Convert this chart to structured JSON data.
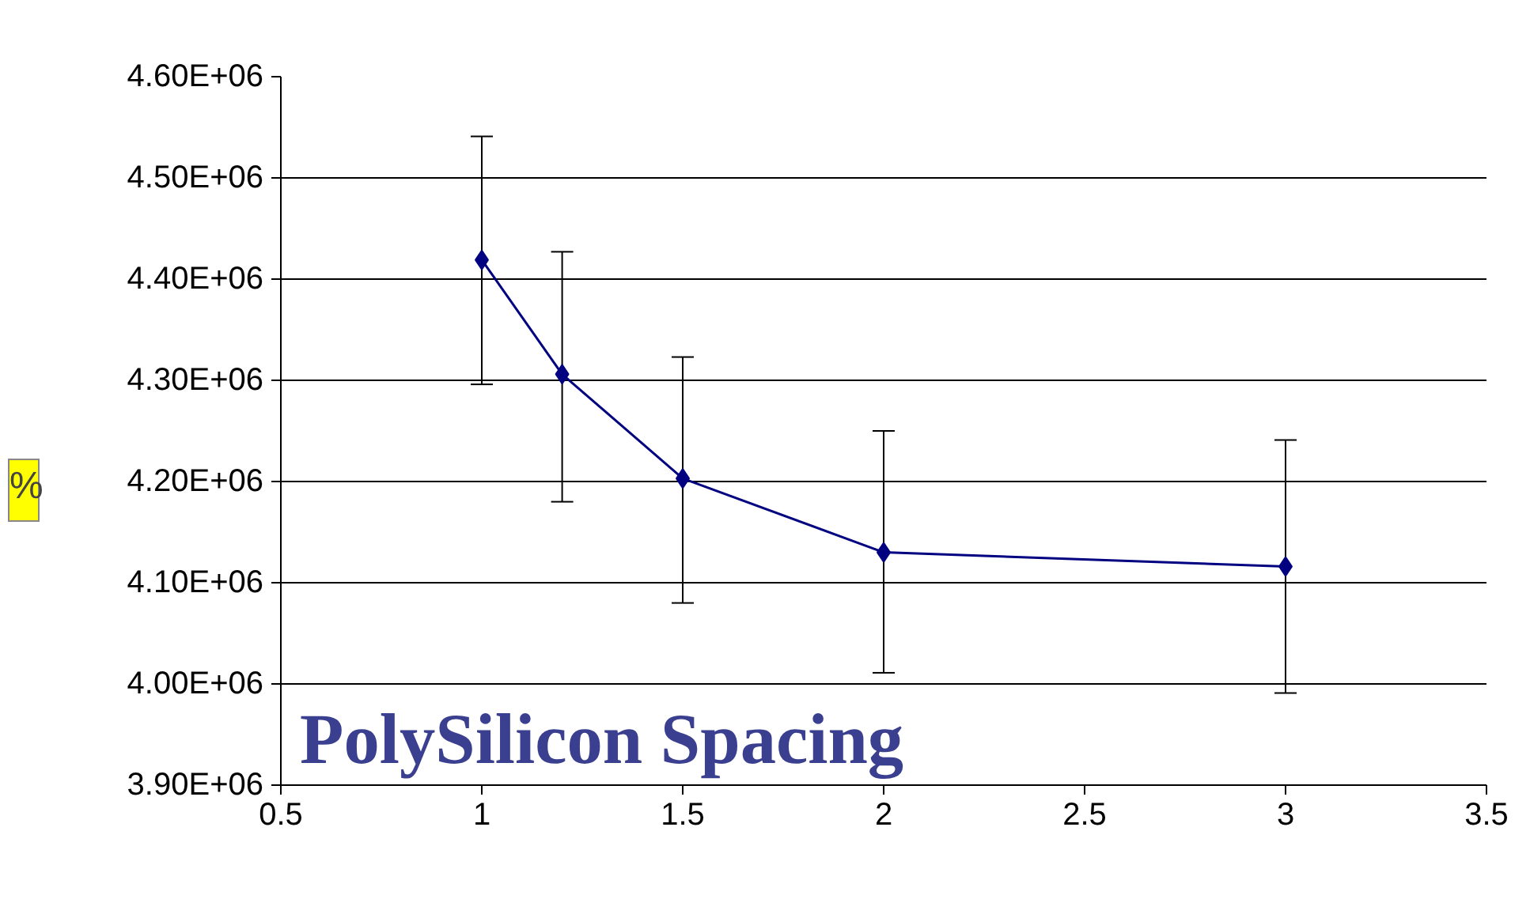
{
  "chart_data": {
    "type": "line",
    "x": [
      1,
      1.2,
      1.5,
      2,
      3
    ],
    "series": [
      {
        "color": "#000080",
        "values": [
          4419000,
          4306000,
          4203000,
          4130000,
          4116000
        ],
        "errors": [
          [
            4296000,
            4541000
          ],
          [
            4180000,
            4427000
          ],
          [
            4080000,
            4323000
          ],
          [
            4011000,
            4250000
          ],
          [
            3991000,
            4241000
          ]
        ]
      }
    ],
    "xlim": [
      0.5,
      3.5
    ],
    "xticks": [
      0.5,
      1,
      1.5,
      2,
      2.5,
      3,
      3.5
    ],
    "ylim": [
      3900000,
      4600000
    ],
    "yticks": [
      {
        "value": 3900000,
        "label": "3.90E+06"
      },
      {
        "value": 4000000,
        "label": "4.00E+06"
      },
      {
        "value": 4100000,
        "label": "4.10E+06"
      },
      {
        "value": 4200000,
        "label": "4.20E+06"
      },
      {
        "value": 4300000,
        "label": "4.30E+06"
      },
      {
        "value": 4400000,
        "label": "4.40E+06"
      },
      {
        "value": 4500000,
        "label": "4.50E+06"
      },
      {
        "value": 4600000,
        "label": "4.60E+06"
      }
    ],
    "grid": "y",
    "marker": "diamond",
    "line_style": "solid",
    "annotations": [
      "PolySilicon Spacing",
      "%"
    ]
  }
}
